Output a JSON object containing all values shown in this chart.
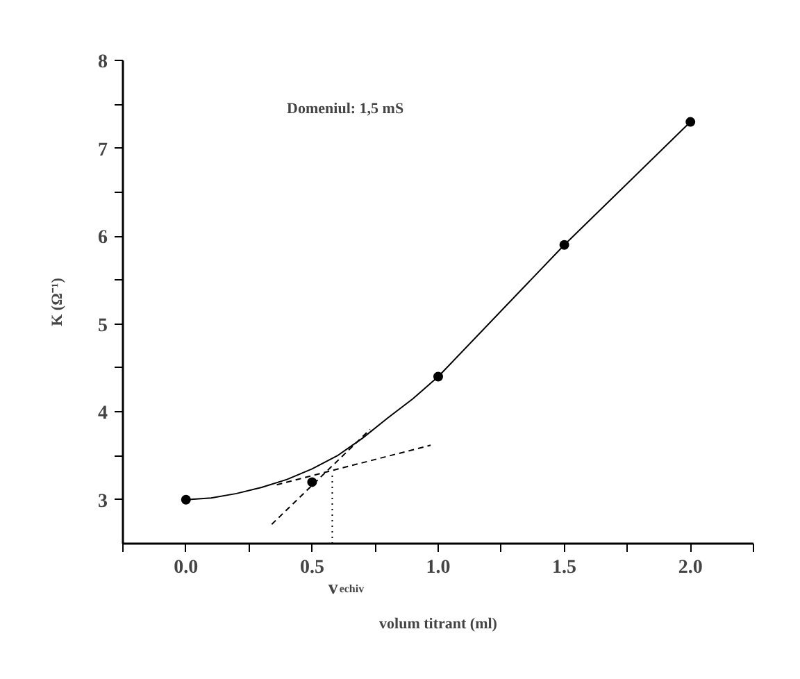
{
  "chart_data": {
    "type": "scatter",
    "xlabel": "volum titrant (ml)",
    "ylabel": "K (Ω⁻¹)",
    "xlim": [
      -0.25,
      2.25
    ],
    "ylim": [
      2.5,
      8
    ],
    "xticks": [
      {
        "value": -0.25,
        "label": null
      },
      {
        "value": 0,
        "label": "0.0"
      },
      {
        "value": 0.25,
        "label": null
      },
      {
        "value": 0.5,
        "label": "0.5"
      },
      {
        "value": 0.75,
        "label": null
      },
      {
        "value": 1,
        "label": "1.0"
      },
      {
        "value": 1.25,
        "label": null
      },
      {
        "value": 1.5,
        "label": "1.5"
      },
      {
        "value": 1.75,
        "label": null
      },
      {
        "value": 2,
        "label": "2.0"
      },
      {
        "value": 2.25,
        "label": null
      }
    ],
    "yticks": [
      3,
      {
        "value": 3.5,
        "label": null
      },
      4,
      {
        "value": 4.5,
        "label": null
      },
      5,
      {
        "value": 5.5,
        "label": null
      },
      6,
      {
        "value": 6.5,
        "label": null
      },
      7,
      {
        "value": 7.5,
        "label": null
      },
      8
    ],
    "grid": false,
    "series": [
      {
        "type": "line",
        "color": "#000000",
        "line_style": "solid",
        "marker": "none",
        "x": [
          0,
          0.1,
          0.2,
          0.3,
          0.4,
          0.5,
          0.6,
          0.7,
          0.8,
          0.9,
          1,
          1.5,
          2
        ],
        "values": [
          3.0,
          3.02,
          3.07,
          3.14,
          3.23,
          3.35,
          3.5,
          3.7,
          3.93,
          4.15,
          4.4,
          5.9,
          7.3
        ]
      },
      {
        "type": "line",
        "color": "#000000",
        "line_style": "dashed",
        "marker": "none",
        "x": [
          0.34,
          0.73
        ],
        "values": [
          2.72,
          3.8
        ]
      },
      {
        "type": "line",
        "color": "#000000",
        "line_style": "dashed",
        "marker": "none",
        "x": [
          0.36,
          0.97
        ],
        "values": [
          3.17,
          3.62
        ]
      },
      {
        "type": "line",
        "color": "#000000",
        "line_style": "dotted",
        "marker": "none",
        "x": [
          0.58,
          0.58
        ],
        "values": [
          2.5,
          3.3
        ]
      },
      {
        "color": "#000000",
        "marker": "circle",
        "x": [
          0,
          0.5,
          1,
          1.5,
          2
        ],
        "values": [
          3.0,
          3.2,
          4.4,
          5.9,
          7.3
        ]
      }
    ],
    "annotations": [
      "Domeniul: 1,5 mS",
      "v$_{echiv}$"
    ]
  }
}
